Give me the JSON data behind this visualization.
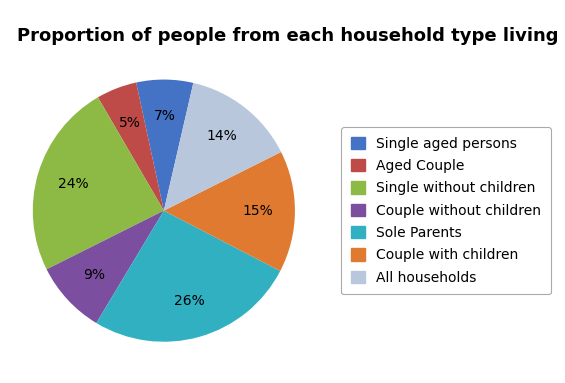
{
  "title": "Proportion of people from each household type living in proverty",
  "labels": [
    "Single aged persons",
    "Aged Couple",
    "Single without children",
    "Couple without children",
    "Sole Parents",
    "Couple with children",
    "All households"
  ],
  "values": [
    7,
    5,
    24,
    9,
    26,
    15,
    14
  ],
  "colors": [
    "#4472C4",
    "#BE4B48",
    "#8DB945",
    "#7B4EA0",
    "#31B0C1",
    "#E07A30",
    "#B8C7DC"
  ],
  "autopct_fontsize": 10,
  "title_fontsize": 13,
  "legend_fontsize": 10,
  "startangle": 77,
  "background_color": "#FFFFFF"
}
